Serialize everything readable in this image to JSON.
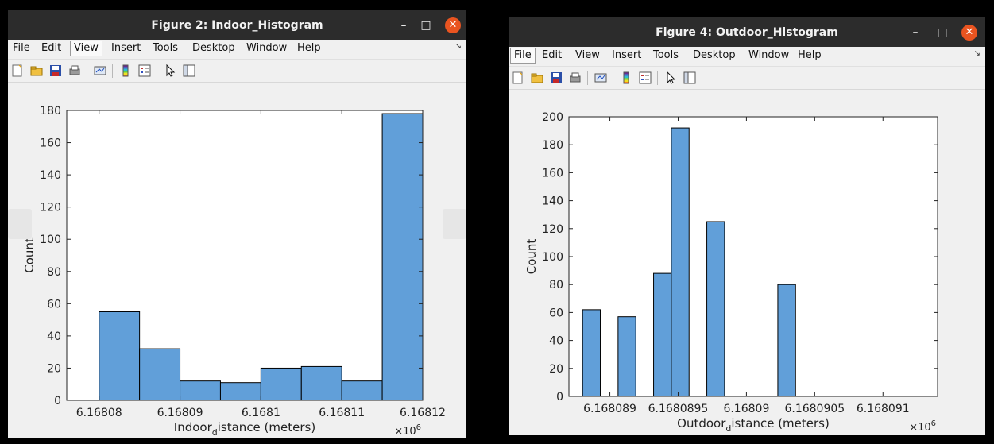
{
  "windows": [
    {
      "title": "Figure 2: Indoor_Histogram",
      "menu": [
        "File",
        "Edit",
        "View",
        "Insert",
        "Tools",
        "Desktop",
        "Window",
        "Help"
      ],
      "selected_menu": "View",
      "icons": [
        "new-file-icon",
        "open-folder-icon",
        "save-icon",
        "print-icon",
        "link-plot-icon",
        "colorbar-icon",
        "legend-icon",
        "pointer-icon",
        "property-inspector-icon"
      ],
      "chart_data": {
        "type": "bar",
        "xlabel_main": "Indoor",
        "xlabel_sub": "d",
        "xlabel_rest": "istance (meters)",
        "ylabel": "Count",
        "x_exponent_label": "×10",
        "x_exponent": "6",
        "ylim": [
          0,
          180
        ],
        "yticks": [
          "0",
          "20",
          "40",
          "60",
          "80",
          "100",
          "120",
          "140",
          "160",
          "180"
        ],
        "xticks": [
          "6.16808",
          "6.16809",
          "6.1681",
          "6.16811",
          "6.16812"
        ],
        "xlim": [
          6.168076,
          6.16812
        ],
        "bin_edges": [
          6.16808,
          6.168085,
          6.16809,
          6.168095,
          6.1681,
          6.168105,
          6.16811,
          6.168115,
          6.16812
        ],
        "values": [
          55,
          32,
          12,
          11,
          20,
          21,
          12,
          178
        ],
        "bar_color": "#619fd9"
      }
    },
    {
      "title": "Figure 4: Outdoor_Histogram",
      "menu": [
        "File",
        "Edit",
        "View",
        "Insert",
        "Tools",
        "Desktop",
        "Window",
        "Help"
      ],
      "selected_menu": "File",
      "icons": [
        "new-file-icon",
        "open-folder-icon",
        "save-icon",
        "print-icon",
        "link-plot-icon",
        "colorbar-icon",
        "legend-icon",
        "pointer-icon",
        "property-inspector-icon"
      ],
      "chart_data": {
        "type": "bar",
        "xlabel_main": "Outdoor",
        "xlabel_sub": "d",
        "xlabel_rest": "istance (meters)",
        "ylabel": "Count",
        "x_exponent_label": "×10",
        "x_exponent": "6",
        "ylim": [
          0,
          200
        ],
        "yticks": [
          "0",
          "20",
          "40",
          "60",
          "80",
          "100",
          "120",
          "140",
          "160",
          "180",
          "200"
        ],
        "xticks": [
          "6.168089",
          "6.1680895",
          "6.16809",
          "6.1680905",
          "6.168091"
        ],
        "xlim": [
          6.1680887,
          6.1680914
        ],
        "bin_edges": [
          6.1680888,
          6.16808885,
          6.1680889,
          6.16808895,
          6.168089,
          6.16808905,
          6.1680891,
          6.16808915,
          6.1680892,
          6.16808925,
          6.1680893,
          6.16808935,
          6.1680894,
          6.16808945,
          6.1680895,
          6.16808955,
          6.1680896,
          6.16808965,
          6.1680897,
          6.16808975,
          6.1680898
        ],
        "bars": [
          {
            "x0": 6.1680888,
            "x1": 6.16808893,
            "value": 62
          },
          {
            "x0": 6.16808906,
            "x1": 6.16808919,
            "value": 57
          },
          {
            "x0": 6.16808932,
            "x1": 6.16808945,
            "value": 88
          },
          {
            "x0": 6.16808945,
            "x1": 6.16808958,
            "value": 192
          },
          {
            "x0": 6.16808971,
            "x1": 6.16808984,
            "value": 125
          },
          {
            "x0": 6.16809023,
            "x1": 6.16809036,
            "value": 80
          }
        ],
        "bar_color": "#619fd9"
      }
    }
  ]
}
